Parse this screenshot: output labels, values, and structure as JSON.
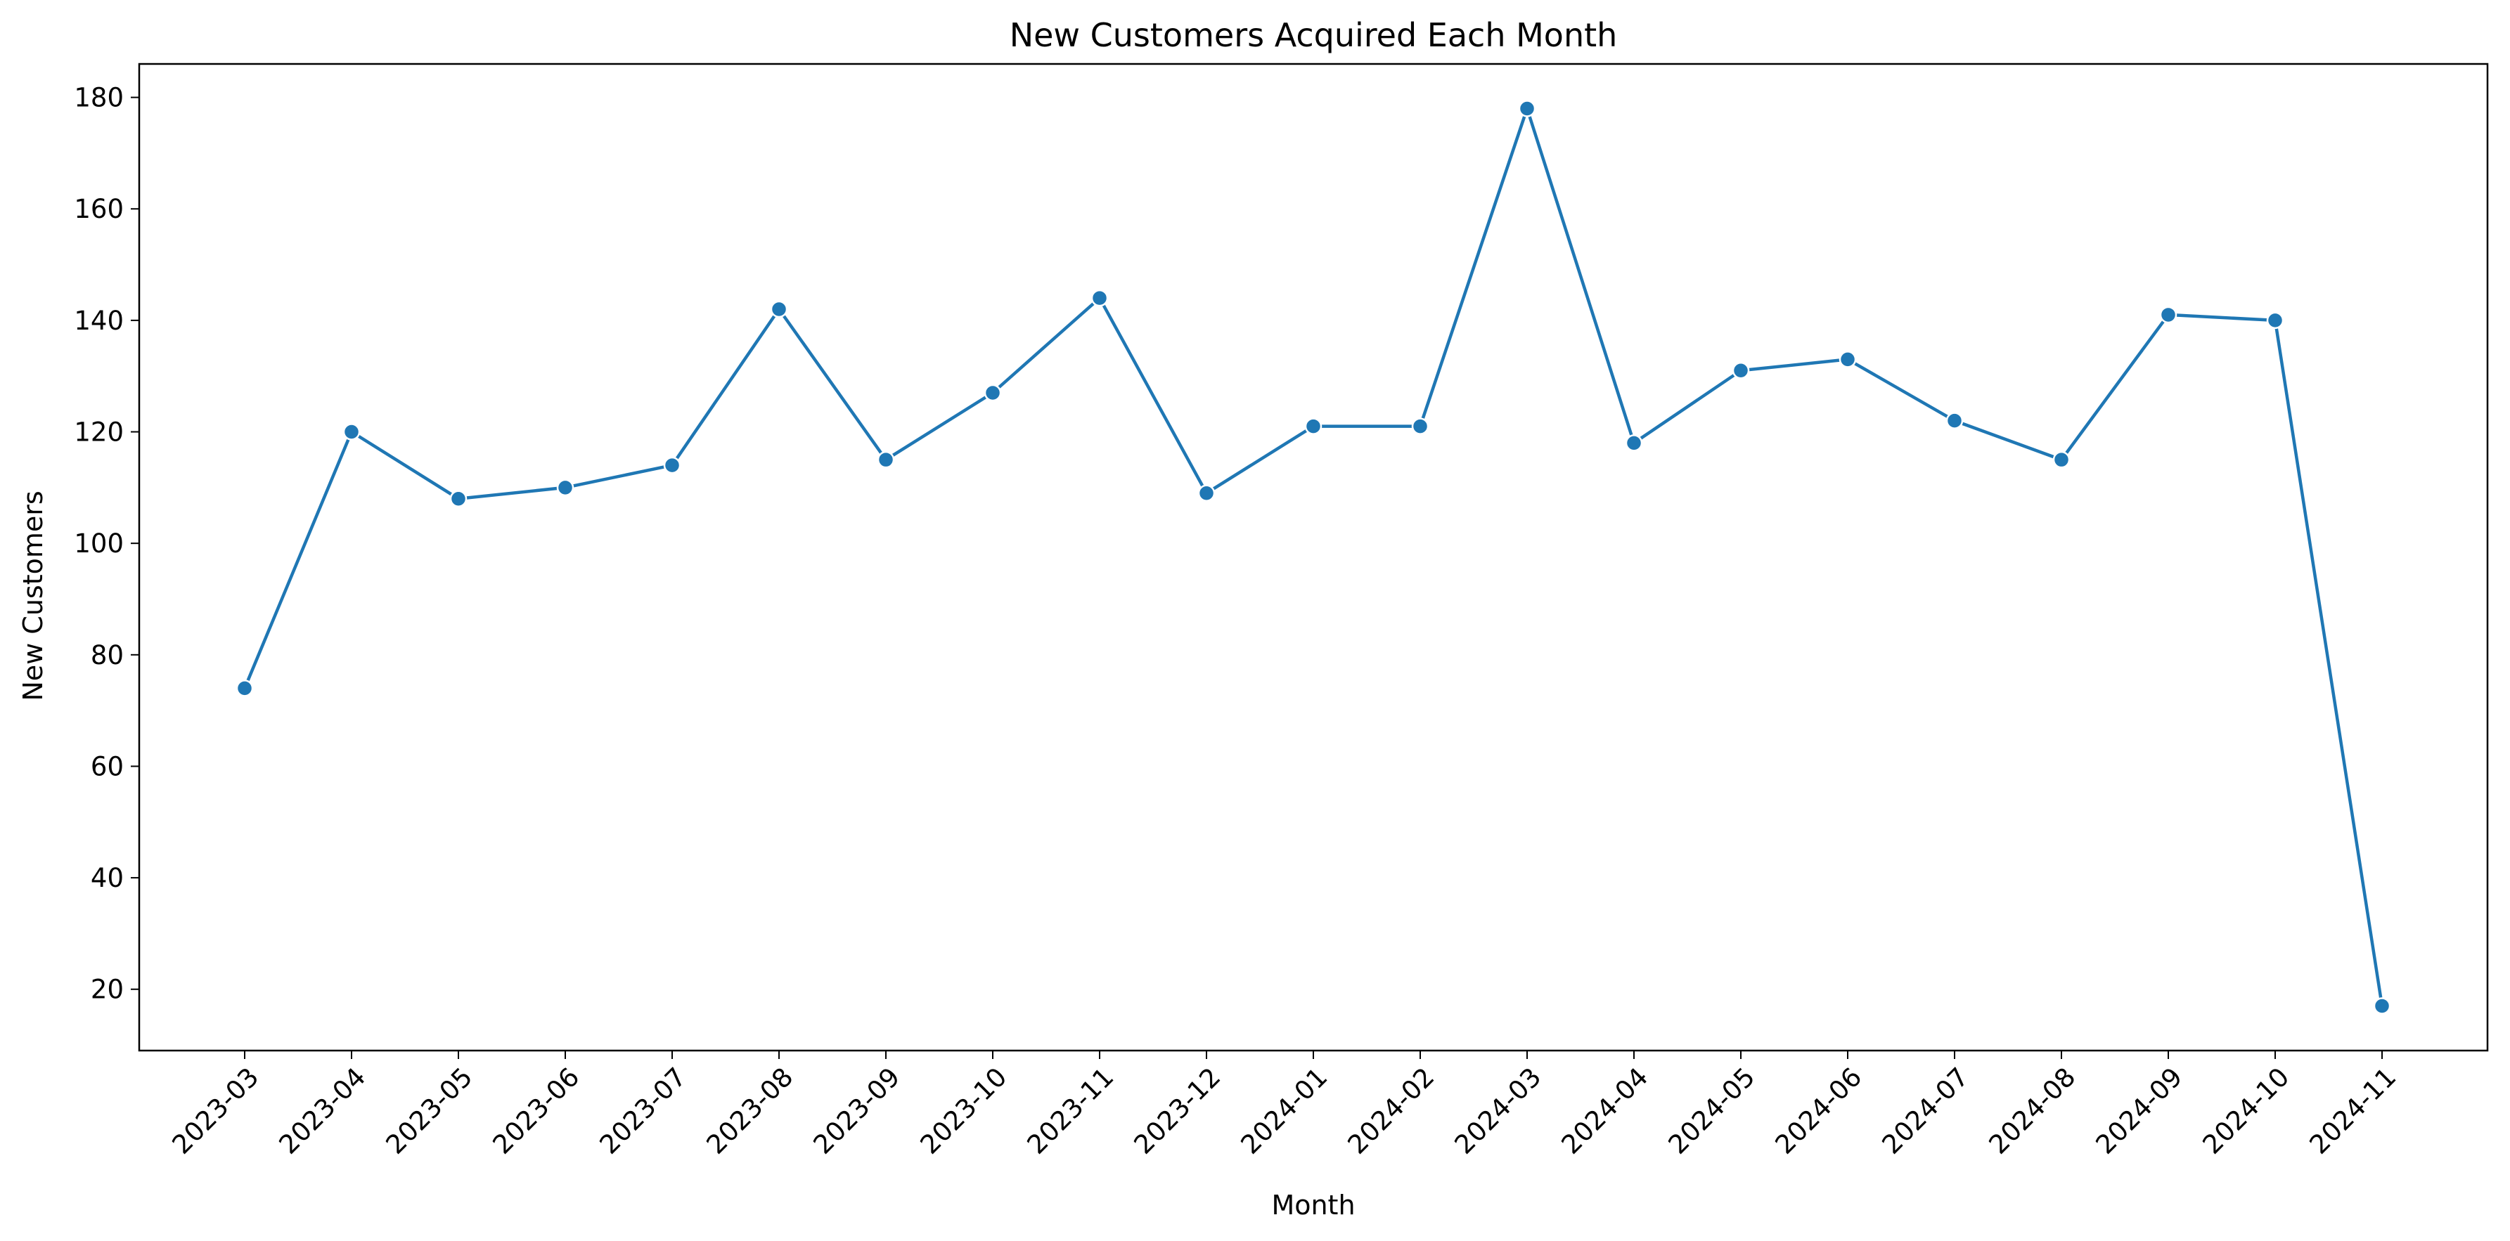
{
  "chart_data": {
    "type": "line",
    "title": "New Customers Acquired Each Month",
    "xlabel": "Month",
    "ylabel": "New Customers",
    "categories": [
      "2023-03",
      "2023-04",
      "2023-05",
      "2023-06",
      "2023-07",
      "2023-08",
      "2023-09",
      "2023-10",
      "2023-11",
      "2023-12",
      "2024-01",
      "2024-02",
      "2024-03",
      "2024-04",
      "2024-05",
      "2024-06",
      "2024-07",
      "2024-08",
      "2024-09",
      "2024-10",
      "2024-11"
    ],
    "series": [
      {
        "values": [
          74,
          120,
          108,
          110,
          114,
          142,
          115,
          127,
          144,
          109,
          121,
          121,
          178,
          118,
          131,
          133,
          122,
          115,
          141,
          140,
          17
        ]
      }
    ],
    "yticks": [
      20,
      40,
      60,
      80,
      100,
      120,
      140,
      160,
      180
    ],
    "ylim": [
      9,
      186
    ],
    "grid": false,
    "legend": "none",
    "colors": {
      "line": "#1f77b4",
      "marker_fill": "#1f77b4",
      "marker_edge": "#ffffff",
      "axes": "#000000"
    }
  }
}
